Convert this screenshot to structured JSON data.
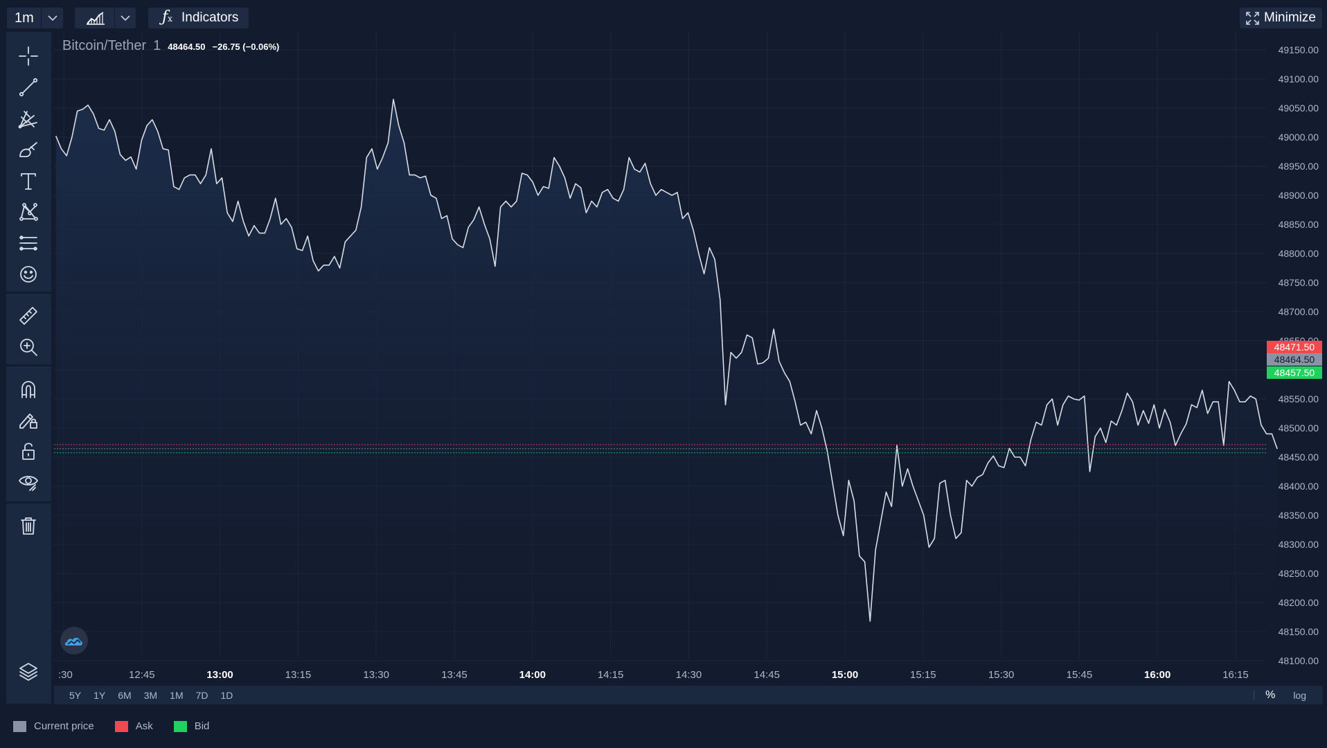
{
  "toolbar_top": {
    "interval": "1m",
    "indicators_label": "Indicators",
    "minimize_label": "Minimize"
  },
  "chart_header": {
    "symbol": "Bitcoin/Tether",
    "interval": "1",
    "last_price": "48464.50",
    "change": "−26.75 (−0.06%)"
  },
  "left_tools": [
    {
      "name": "crosshair-icon"
    },
    {
      "name": "trend-line-icon"
    },
    {
      "name": "fib-icon"
    },
    {
      "name": "brush-icon"
    },
    {
      "name": "text-icon"
    },
    {
      "name": "pattern-icon"
    },
    {
      "name": "prediction-icon"
    },
    {
      "name": "emoji-icon"
    },
    {
      "name": "ruler-icon"
    },
    {
      "name": "zoom-in-icon"
    },
    {
      "name": "magnet-icon"
    },
    {
      "name": "lock-drawing-icon"
    },
    {
      "name": "unlock-icon"
    },
    {
      "name": "eye-icon"
    },
    {
      "name": "trash-icon"
    },
    {
      "name": "layers-icon"
    }
  ],
  "range_buttons": [
    "5Y",
    "1Y",
    "6M",
    "3M",
    "1M",
    "7D",
    "1D"
  ],
  "scale_buttons": {
    "percent": "%",
    "log": "log"
  },
  "legend": [
    {
      "label": "Current price",
      "color": "#8a93a3"
    },
    {
      "label": "Ask",
      "color": "#f2494e"
    },
    {
      "label": "Bid",
      "color": "#1fd15f"
    }
  ],
  "colors": {
    "background": "#131b2e",
    "line": "#d8dde6",
    "ask": "#f2494e",
    "bid": "#1fd15f",
    "current": "#8a93a3"
  },
  "chart_data": {
    "type": "area",
    "title": "Bitcoin/Tether",
    "x_tick_labels": [
      ":30",
      "12:45",
      "13:00",
      "13:15",
      "13:30",
      "13:45",
      "14:00",
      "14:15",
      "14:30",
      "14:45",
      "15:00",
      "15:15",
      "15:30",
      "15:45",
      "16:00",
      "16:15"
    ],
    "x_tick_bold": [
      false,
      false,
      true,
      false,
      false,
      false,
      true,
      false,
      false,
      false,
      true,
      false,
      false,
      false,
      true,
      false
    ],
    "y_tick_labels": [
      "49150.00",
      "49100.00",
      "49050.00",
      "49000.00",
      "48950.00",
      "48900.00",
      "48850.00",
      "48800.00",
      "48750.00",
      "48700.00",
      "48650.00",
      "48600.00",
      "48550.00",
      "48500.00",
      "48450.00",
      "48400.00",
      "48350.00",
      "48300.00",
      "48250.00",
      "48200.00",
      "48150.00",
      "48100.00"
    ],
    "ylim": [
      48075,
      49175
    ],
    "x_minutes_range": [
      -0.5,
      236
    ],
    "price_labels": {
      "ask": "48471.50",
      "current": "48464.50",
      "bid": "48457.50"
    },
    "price_values": {
      "ask": 48471.5,
      "current": 48464.5,
      "bid": 48457.5
    },
    "series": [
      {
        "values": [
          49002,
          48980,
          48968,
          49000,
          49045,
          49048,
          49055,
          49040,
          49015,
          49012,
          49030,
          49010,
          48970,
          48960,
          48966,
          48945,
          48995,
          49020,
          49030,
          49010,
          48980,
          48978,
          48915,
          48910,
          48930,
          48935,
          48935,
          48920,
          48935,
          48980,
          48920,
          48930,
          48870,
          48855,
          48890,
          48855,
          48830,
          48848,
          48835,
          48835,
          48860,
          48895,
          48850,
          48860,
          48845,
          48808,
          48805,
          48830,
          48788,
          48770,
          48780,
          48780,
          48795,
          48775,
          48820,
          48830,
          48840,
          48880,
          48965,
          48980,
          48945,
          48965,
          48990,
          49065,
          49020,
          48990,
          48935,
          48935,
          48930,
          48933,
          48900,
          48895,
          48860,
          48865,
          48825,
          48815,
          48810,
          48845,
          48858,
          48880,
          48850,
          48825,
          48778,
          48880,
          48890,
          48880,
          48890,
          48938,
          48935,
          48923,
          48900,
          48915,
          48912,
          48965,
          48950,
          48930,
          48895,
          48920,
          48913,
          48870,
          48890,
          48880,
          48905,
          48910,
          48895,
          48890,
          48910,
          48965,
          48945,
          48940,
          48955,
          48920,
          48900,
          48910,
          48905,
          48900,
          48905,
          48860,
          48870,
          48840,
          48800,
          48765,
          48810,
          48790,
          48720,
          48540,
          48630,
          48620,
          48630,
          48660,
          48655,
          48610,
          48612,
          48620,
          48670,
          48615,
          48595,
          48580,
          48545,
          48505,
          48510,
          48490,
          48530,
          48500,
          48460,
          48405,
          48350,
          48315,
          48410,
          48375,
          48280,
          48270,
          48168,
          48290,
          48340,
          48390,
          48365,
          48470,
          48400,
          48430,
          48400,
          48375,
          48350,
          48295,
          48310,
          48405,
          48410,
          48350,
          48310,
          48320,
          48410,
          48400,
          48415,
          48420,
          48440,
          48452,
          48435,
          48432,
          48465,
          48450,
          48450,
          48435,
          48480,
          48510,
          48505,
          48540,
          48550,
          48505,
          48540,
          48555,
          48550,
          48548,
          48555,
          48425,
          48485,
          48500,
          48475,
          48512,
          48505,
          48530,
          48560,
          48545,
          48505,
          48530,
          48508,
          48540,
          48500,
          48532,
          48510,
          48470,
          48490,
          48507,
          48540,
          48535,
          48565,
          48525,
          48545,
          48545,
          48470,
          48580,
          48565,
          48545,
          48545,
          48555,
          48550,
          48505,
          48490,
          48490,
          48464
        ]
      }
    ]
  }
}
